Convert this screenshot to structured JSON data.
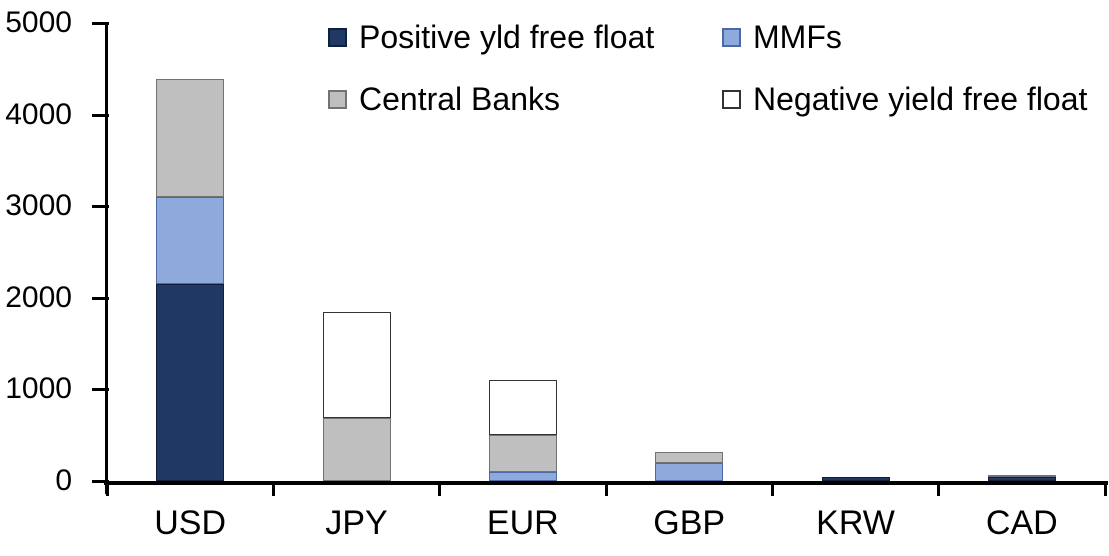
{
  "chart_data": {
    "type": "bar",
    "stacked": true,
    "title": "",
    "xlabel": "",
    "ylabel": "",
    "categories": [
      "USD",
      "JPY",
      "EUR",
      "GBP",
      "KRW",
      "CAD"
    ],
    "series": [
      {
        "name": "Positive yld free float",
        "fill": "#1F3864",
        "border": "#10203B",
        "values": [
          2150,
          0,
          0,
          0,
          45,
          40
        ]
      },
      {
        "name": "MMFs",
        "fill": "#8EA9DB",
        "border": "#4A69A5",
        "values": [
          950,
          0,
          100,
          200,
          0,
          0
        ]
      },
      {
        "name": "Central Banks",
        "fill": "#BFBFBF",
        "border": "#737373",
        "values": [
          1290,
          690,
          400,
          120,
          0,
          30
        ]
      },
      {
        "name": "Negative yield free float",
        "fill": "#FFFFFF",
        "border": "#333333",
        "values": [
          0,
          1150,
          600,
          0,
          0,
          0
        ]
      }
    ],
    "ylim": [
      0,
      5000
    ],
    "yticks": [
      0,
      1000,
      2000,
      3000,
      4000,
      5000
    ],
    "grid": false,
    "legend_position": "top",
    "axis_color": "#000000",
    "text_color": "#000000"
  }
}
